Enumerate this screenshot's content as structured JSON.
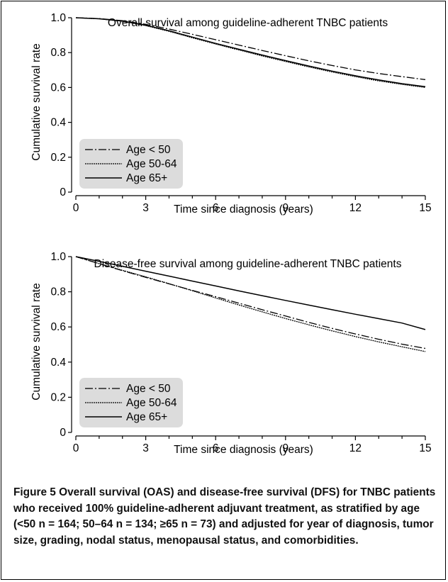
{
  "chart_data": [
    {
      "type": "line",
      "title": "Overall survival among guideline-adherent TNBC patients",
      "xlabel": "Time since diagnosis (years)",
      "ylabel": "Cumulative survival rate",
      "xlim": [
        0,
        15
      ],
      "ylim": [
        0,
        1.0
      ],
      "xticks": [
        "0",
        "3",
        "6",
        "9",
        "12",
        "15"
      ],
      "yticks": [
        "0",
        "0.2",
        "0.4",
        "0.6",
        "0.8",
        "1.0"
      ],
      "grid": false,
      "legend": "bottom-left",
      "x": [
        0,
        1,
        2,
        3,
        4,
        5,
        6,
        7,
        8,
        9,
        10,
        11,
        12,
        13,
        14,
        15
      ],
      "series": [
        {
          "name": "Age < 50",
          "style": "dash-dot",
          "values": [
            1.0,
            0.995,
            0.983,
            0.962,
            0.935,
            0.905,
            0.874,
            0.843,
            0.812,
            0.782,
            0.753,
            0.726,
            0.701,
            0.68,
            0.662,
            0.645
          ]
        },
        {
          "name": "Age 50-64",
          "style": "dotted",
          "values": [
            1.0,
            0.994,
            0.98,
            0.955,
            0.922,
            0.885,
            0.849,
            0.815,
            0.781,
            0.749,
            0.718,
            0.689,
            0.662,
            0.638,
            0.618,
            0.6
          ]
        },
        {
          "name": "Age 65+",
          "style": "solid",
          "values": [
            1.0,
            0.994,
            0.981,
            0.957,
            0.925,
            0.889,
            0.853,
            0.819,
            0.786,
            0.754,
            0.723,
            0.694,
            0.667,
            0.643,
            0.622,
            0.605
          ]
        }
      ]
    },
    {
      "type": "line",
      "title": "Disease-free survival among guideline-adherent TNBC patients",
      "xlabel": "Time since diagnosis (years)",
      "ylabel": "Cumulative survival rate",
      "xlim": [
        0,
        15
      ],
      "ylim": [
        0,
        1.0
      ],
      "xticks": [
        "0",
        "3",
        "6",
        "9",
        "12",
        "15"
      ],
      "yticks": [
        "0",
        "0.2",
        "0.4",
        "0.6",
        "0.8",
        "1.0"
      ],
      "grid": false,
      "legend": "bottom-left",
      "x": [
        0,
        1,
        2,
        3,
        4,
        5,
        6,
        7,
        8,
        9,
        10,
        11,
        12,
        13,
        14,
        15
      ],
      "series": [
        {
          "name": "Age < 50",
          "style": "dash-dot",
          "values": [
            1.0,
            0.96,
            0.92,
            0.882,
            0.845,
            0.808,
            0.772,
            0.735,
            0.698,
            0.662,
            0.626,
            0.592,
            0.56,
            0.53,
            0.502,
            0.478
          ]
        },
        {
          "name": "Age 50-64",
          "style": "dotted",
          "values": [
            1.0,
            0.96,
            0.922,
            0.885,
            0.846,
            0.806,
            0.765,
            0.725,
            0.686,
            0.648,
            0.612,
            0.578,
            0.545,
            0.515,
            0.487,
            0.46
          ]
        },
        {
          "name": "Age 65+",
          "style": "solid",
          "values": [
            1.0,
            0.973,
            0.945,
            0.917,
            0.889,
            0.861,
            0.833,
            0.805,
            0.778,
            0.751,
            0.724,
            0.698,
            0.672,
            0.647,
            0.622,
            0.585
          ]
        }
      ]
    }
  ],
  "caption": {
    "label": "Figure 5",
    "text": " Overall survival (OAS) and disease-free survival (DFS) for TNBC patients who received 100% guideline-adherent adjuvant treatment, as stratified by age (<50 n = 164; 50–64 n = 134; ≥65 n = 73) and adjusted for year of diagnosis, tumor size, grading, nodal status, menopausal status, and comorbidities."
  }
}
